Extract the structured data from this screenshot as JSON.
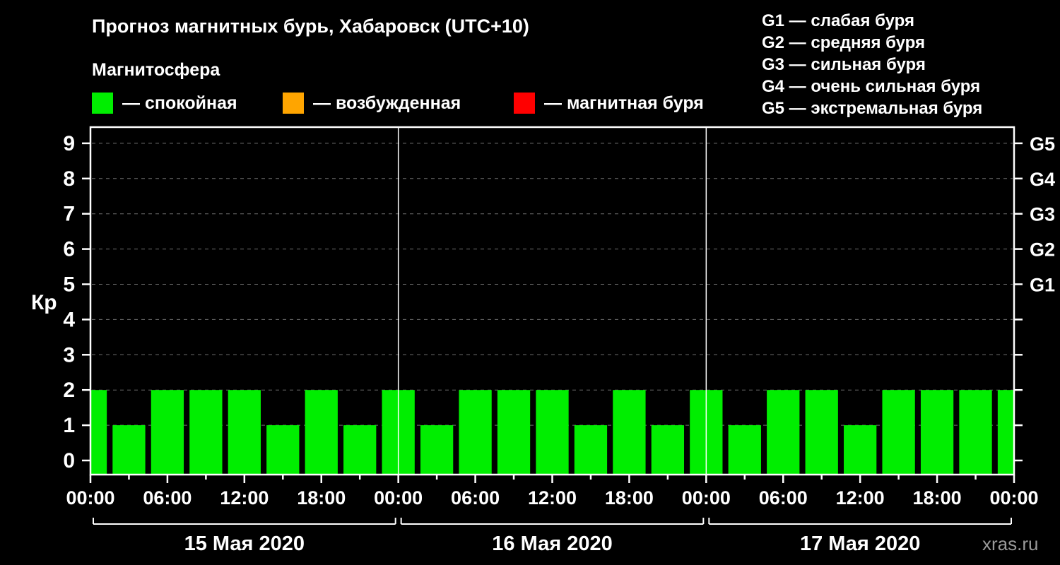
{
  "header": {
    "title": "Прогноз магнитных бурь, Хабаровск (UTC+10)",
    "subtitle": "Магнитосфера",
    "legend": [
      {
        "label": "— спокойная",
        "color": "#00ee00"
      },
      {
        "label": "— возбужденная",
        "color": "#ffa500"
      },
      {
        "label": "— магнитная буря",
        "color": "#ff0000"
      }
    ],
    "storm_scale": [
      "G1 — слабая буря",
      "G2 — средняя буря",
      "G3 — сильная буря",
      "G4 — очень сильная буря",
      "G5 — экстремальная буря"
    ]
  },
  "watermark": "xras.ru",
  "chart_data": {
    "type": "bar",
    "title": "Прогноз магнитных бурь, Хабаровск (UTC+10)",
    "ylabel": "Кр",
    "ylim": [
      0,
      9.5
    ],
    "y_ticks": [
      0,
      1,
      2,
      3,
      4,
      5,
      6,
      7,
      8,
      9
    ],
    "g_scale": [
      {
        "kp": 5,
        "label": "G1"
      },
      {
        "kp": 6,
        "label": "G2"
      },
      {
        "kp": 7,
        "label": "G3"
      },
      {
        "kp": 8,
        "label": "G4"
      },
      {
        "kp": 9,
        "label": "G5"
      }
    ],
    "bar_color": "#00ee00",
    "bar_width_hours": 2.55,
    "hours": [
      0,
      3,
      6,
      9,
      12,
      15,
      18,
      21,
      24,
      27,
      30,
      33,
      36,
      39,
      42,
      45,
      48,
      51,
      54,
      57,
      60,
      63,
      66,
      69,
      72
    ],
    "values": [
      2,
      1,
      2,
      2,
      2,
      1,
      2,
      1,
      2,
      1,
      2,
      2,
      2,
      1,
      2,
      1,
      2,
      1,
      2,
      2,
      1,
      2,
      2,
      2,
      2
    ],
    "x_tick_hours": [
      0,
      6,
      12,
      18,
      24,
      30,
      36,
      42,
      48,
      54,
      60,
      66,
      72
    ],
    "x_tick_labels": [
      "00:00",
      "06:00",
      "12:00",
      "18:00",
      "00:00",
      "06:00",
      "12:00",
      "18:00",
      "00:00",
      "06:00",
      "12:00",
      "18:00",
      "00:00"
    ],
    "day_separator_hours": [
      24,
      48
    ],
    "days": [
      {
        "label": "15 Мая 2020",
        "start_hour": 0,
        "end_hour": 24
      },
      {
        "label": "16 Мая 2020",
        "start_hour": 24,
        "end_hour": 48
      },
      {
        "label": "17 Мая 2020",
        "start_hour": 48,
        "end_hour": 72
      }
    ],
    "grid": true,
    "legend_position": "top"
  }
}
